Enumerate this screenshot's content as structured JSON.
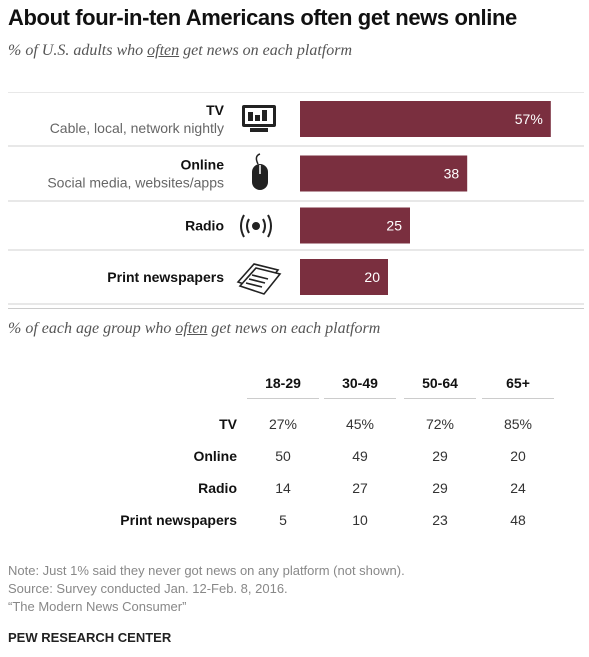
{
  "title": "About four-in-ten Americans often get news online",
  "subtitle1": {
    "pre": "% of U.S. adults who ",
    "emph": "often",
    "post": " get news on each platform"
  },
  "subtitle2": {
    "pre": "% of each age group who ",
    "emph": "often",
    "post": " get news on each platform"
  },
  "chart_data": [
    {
      "type": "bar",
      "orientation": "horizontal",
      "categories": [
        "TV",
        "Online",
        "Radio",
        "Print newspapers"
      ],
      "category_sublabels": [
        "Cable, local, network nightly",
        "Social media, websites/apps",
        "",
        ""
      ],
      "category_icons": [
        "tv-icon",
        "mouse-icon",
        "radio-icon",
        "newspaper-icon"
      ],
      "values": [
        57,
        38,
        25,
        20
      ],
      "value_labels": [
        "57%",
        "38",
        "25",
        "20"
      ],
      "xlim": [
        0,
        60
      ],
      "bar_color": "#7a2f3f",
      "grid": false
    },
    {
      "type": "table",
      "columns": [
        "18-29",
        "30-49",
        "50-64",
        "65+"
      ],
      "rows": [
        {
          "label": "TV",
          "values": [
            "27%",
            "45%",
            "72%",
            "85%"
          ]
        },
        {
          "label": "Online",
          "values": [
            "50",
            "49",
            "29",
            "20"
          ]
        },
        {
          "label": "Radio",
          "values": [
            "14",
            "27",
            "29",
            "24"
          ]
        },
        {
          "label": "Print newspapers",
          "values": [
            "5",
            "10",
            "23",
            "48"
          ]
        }
      ]
    }
  ],
  "notes": [
    "Note: Just 1% said they never got news on any platform (not shown).",
    "Source: Survey conducted Jan. 12-Feb. 8, 2016.",
    "“The Modern News Consumer”"
  ],
  "brand": "PEW RESEARCH CENTER"
}
